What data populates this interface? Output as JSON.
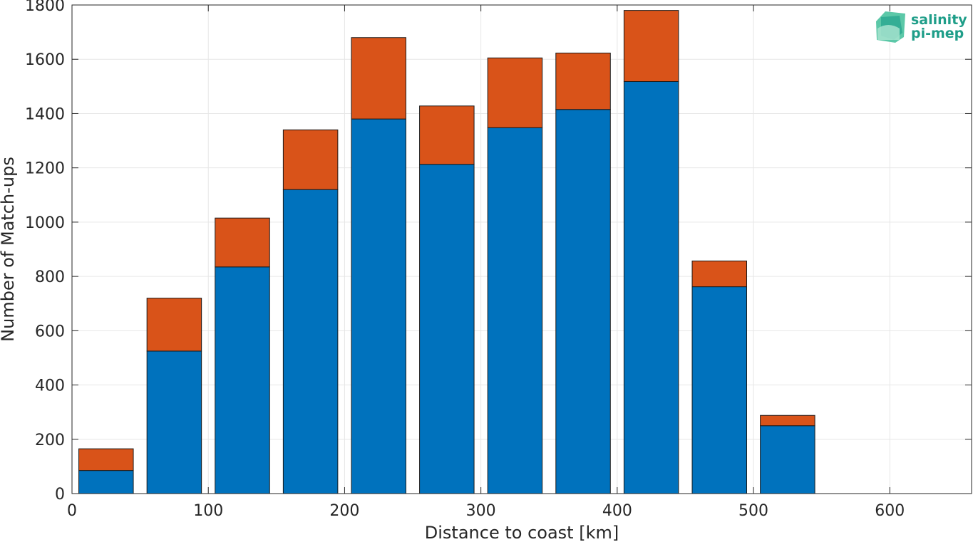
{
  "chart_data": {
    "type": "bar",
    "stacked": true,
    "xlabel": "Distance to coast [km]",
    "ylabel": "Number of Match-ups",
    "xlim": [
      0,
      660
    ],
    "ylim": [
      0,
      1800
    ],
    "xticks": [
      0,
      100,
      200,
      300,
      400,
      500,
      600
    ],
    "yticks": [
      0,
      200,
      400,
      600,
      800,
      1000,
      1200,
      1400,
      1600,
      1800
    ],
    "grid": true,
    "bin_width": 40,
    "x": [
      25,
      75,
      125,
      175,
      225,
      275,
      325,
      375,
      425,
      475,
      525
    ],
    "series": [
      {
        "color": "#0072bd",
        "values": [
          85,
          525,
          835,
          1120,
          1380,
          1213,
          1348,
          1415,
          1518,
          762,
          250
        ]
      },
      {
        "color": "#d95319",
        "values": [
          80,
          195,
          180,
          220,
          300,
          215,
          257,
          208,
          262,
          95,
          38
        ]
      }
    ]
  },
  "logo": {
    "line1": "salinity",
    "line2": "pi-mep",
    "color": "#1f9e89"
  }
}
